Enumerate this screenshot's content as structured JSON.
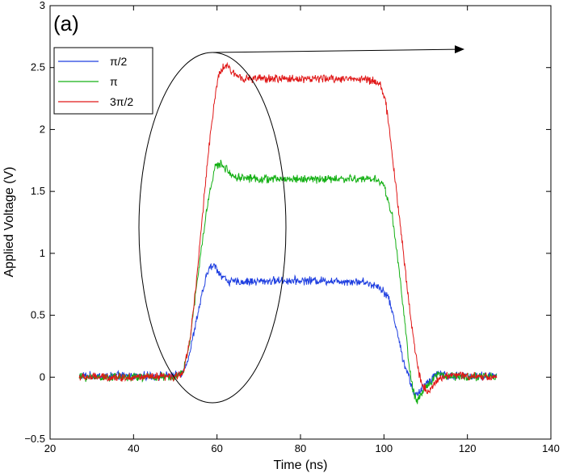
{
  "chart_data": {
    "type": "line",
    "panel_label": "(a)",
    "xlabel": "Time (ns)",
    "ylabel": "Applied Voltage (V)",
    "xlim": [
      20,
      140
    ],
    "ylim": [
      -0.5,
      3
    ],
    "xticks": [
      20,
      40,
      60,
      80,
      100,
      120,
      140
    ],
    "yticks": [
      -0.5,
      0,
      0.5,
      1,
      1.5,
      2,
      2.5,
      3
    ],
    "xtick_labels": [
      "20",
      "40",
      "60",
      "80",
      "100",
      "120",
      "140"
    ],
    "ytick_labels": [
      "−0.5",
      "0",
      "0.5",
      "1",
      "1.5",
      "2",
      "2.5",
      "3"
    ],
    "grid": false,
    "legend_position": "top-left",
    "series": [
      {
        "name": "π/2",
        "color": "#1f3fe0",
        "x": [
          27,
          50,
          52,
          53.5,
          55,
          56.5,
          58,
          59.5,
          61,
          63,
          66,
          75,
          85,
          95,
          99,
          101,
          103,
          104.5,
          106,
          107,
          108,
          110,
          113,
          115,
          127
        ],
        "y": [
          0.01,
          0.01,
          0.05,
          0.2,
          0.45,
          0.68,
          0.88,
          0.9,
          0.82,
          0.77,
          0.77,
          0.78,
          0.78,
          0.77,
          0.73,
          0.65,
          0.4,
          0.15,
          0.0,
          -0.12,
          -0.15,
          -0.05,
          0.04,
          0.01,
          0.01
        ]
      },
      {
        "name": "π",
        "color": "#14b014",
        "x": [
          27,
          50,
          52,
          53.5,
          55,
          56.5,
          58,
          59.5,
          61,
          64,
          70,
          80,
          90,
          98,
          100,
          102,
          103.5,
          105,
          106,
          107,
          108,
          110,
          113,
          115,
          127
        ],
        "y": [
          0.0,
          0.0,
          0.05,
          0.3,
          0.7,
          1.1,
          1.45,
          1.7,
          1.72,
          1.62,
          1.6,
          1.6,
          1.6,
          1.6,
          1.55,
          1.3,
          0.9,
          0.45,
          0.1,
          -0.12,
          -0.2,
          -0.08,
          0.03,
          0.01,
          0.0
        ]
      },
      {
        "name": "3π/2",
        "color": "#e01818",
        "x": [
          27,
          50,
          52,
          53.5,
          55,
          56.5,
          58,
          59.5,
          60.5,
          62,
          64,
          67,
          75,
          85,
          95,
          99,
          100.5,
          102,
          103.5,
          105,
          106.5,
          108,
          109,
          110.5,
          112,
          115,
          127
        ],
        "y": [
          0.0,
          0.0,
          0.05,
          0.3,
          0.75,
          1.3,
          1.85,
          2.25,
          2.45,
          2.52,
          2.45,
          2.41,
          2.41,
          2.41,
          2.41,
          2.38,
          2.2,
          1.8,
          1.35,
          0.9,
          0.45,
          0.1,
          -0.05,
          -0.12,
          -0.05,
          0.02,
          0.0
        ]
      }
    ]
  }
}
